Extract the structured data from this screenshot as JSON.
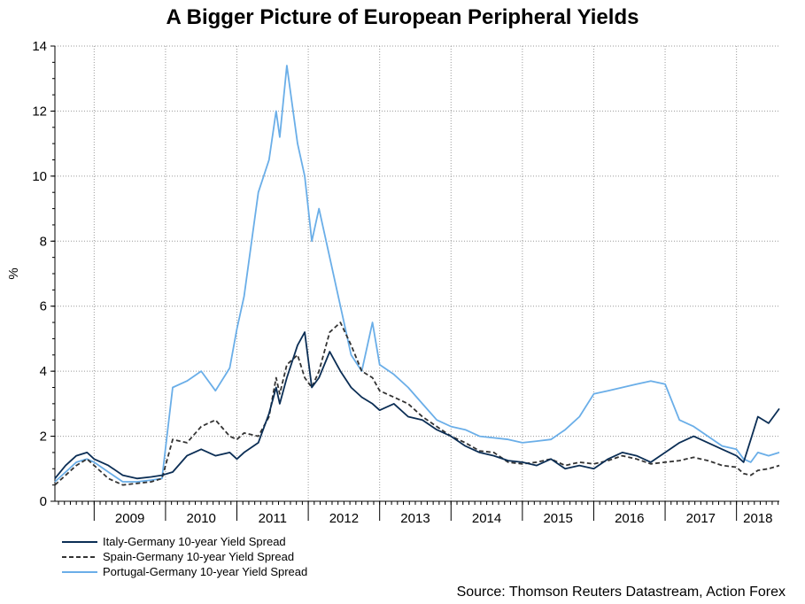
{
  "chart_data": {
    "type": "line",
    "title": "A Bigger Picture of European Peripheral Yields",
    "xlabel": "",
    "ylabel": "%",
    "ylim": [
      0,
      14
    ],
    "yticks": [
      "0",
      "2",
      "4",
      "6",
      "8",
      "10",
      "12",
      "14"
    ],
    "xlim": [
      2008.45,
      2018.6
    ],
    "x_tick_labels": [
      "2009",
      "2010",
      "2011",
      "2012",
      "2013",
      "2014",
      "2015",
      "2016",
      "2017",
      "2018"
    ],
    "grid": true,
    "legend_position": "bottom-left",
    "series": [
      {
        "name": "Italy-Germany 10-year Yield Spread",
        "color": "#0b2e55",
        "dash": "solid",
        "x": [
          2008.45,
          2008.6,
          2008.75,
          2008.9,
          2009.0,
          2009.2,
          2009.4,
          2009.6,
          2009.8,
          2009.95,
          2010.1,
          2010.3,
          2010.5,
          2010.7,
          2010.9,
          2011.0,
          2011.1,
          2011.3,
          2011.45,
          2011.55,
          2011.6,
          2011.7,
          2011.85,
          2011.95,
          2012.05,
          2012.15,
          2012.3,
          2012.45,
          2012.6,
          2012.75,
          2012.9,
          2013.0,
          2013.2,
          2013.4,
          2013.6,
          2013.8,
          2014.0,
          2014.2,
          2014.4,
          2014.6,
          2014.8,
          2015.0,
          2015.2,
          2015.4,
          2015.6,
          2015.8,
          2016.0,
          2016.2,
          2016.4,
          2016.6,
          2016.8,
          2017.0,
          2017.2,
          2017.4,
          2017.6,
          2017.8,
          2018.0,
          2018.1,
          2018.2,
          2018.3,
          2018.45,
          2018.6
        ],
        "values": [
          0.7,
          1.1,
          1.4,
          1.5,
          1.3,
          1.1,
          0.8,
          0.7,
          0.75,
          0.8,
          0.9,
          1.4,
          1.6,
          1.4,
          1.5,
          1.3,
          1.5,
          1.8,
          2.7,
          3.5,
          3.0,
          3.8,
          4.8,
          5.2,
          3.5,
          3.8,
          4.6,
          4.0,
          3.5,
          3.2,
          3.0,
          2.8,
          3.0,
          2.6,
          2.5,
          2.2,
          2.0,
          1.7,
          1.5,
          1.4,
          1.25,
          1.2,
          1.1,
          1.3,
          1.0,
          1.1,
          1.0,
          1.3,
          1.5,
          1.4,
          1.2,
          1.5,
          1.8,
          2.0,
          1.8,
          1.6,
          1.4,
          1.2,
          1.9,
          2.6,
          2.4,
          2.85
        ]
      },
      {
        "name": "Spain-Germany 10-year Yield Spread",
        "color": "#333333",
        "dash": "dashed",
        "x": [
          2008.45,
          2008.6,
          2008.75,
          2008.9,
          2009.0,
          2009.2,
          2009.4,
          2009.6,
          2009.8,
          2009.95,
          2010.1,
          2010.3,
          2010.5,
          2010.7,
          2010.9,
          2011.0,
          2011.1,
          2011.3,
          2011.45,
          2011.55,
          2011.6,
          2011.7,
          2011.85,
          2011.95,
          2012.05,
          2012.15,
          2012.3,
          2012.45,
          2012.6,
          2012.75,
          2012.9,
          2013.0,
          2013.2,
          2013.4,
          2013.6,
          2013.8,
          2014.0,
          2014.2,
          2014.4,
          2014.6,
          2014.8,
          2015.0,
          2015.2,
          2015.4,
          2015.6,
          2015.8,
          2016.0,
          2016.2,
          2016.4,
          2016.6,
          2016.8,
          2017.0,
          2017.2,
          2017.4,
          2017.6,
          2017.8,
          2018.0,
          2018.1,
          2018.2,
          2018.3,
          2018.45,
          2018.6
        ],
        "values": [
          0.5,
          0.8,
          1.1,
          1.3,
          1.1,
          0.7,
          0.5,
          0.55,
          0.6,
          0.7,
          1.9,
          1.8,
          2.3,
          2.5,
          2.0,
          1.9,
          2.1,
          2.0,
          2.6,
          3.8,
          3.3,
          4.2,
          4.5,
          3.8,
          3.5,
          4.0,
          5.2,
          5.5,
          4.8,
          4.0,
          3.8,
          3.4,
          3.2,
          3.0,
          2.6,
          2.3,
          2.0,
          1.8,
          1.55,
          1.5,
          1.2,
          1.15,
          1.2,
          1.3,
          1.1,
          1.2,
          1.15,
          1.25,
          1.4,
          1.3,
          1.15,
          1.2,
          1.25,
          1.35,
          1.25,
          1.1,
          1.05,
          0.85,
          0.8,
          0.95,
          1.0,
          1.1
        ]
      },
      {
        "name": "Portugal-Germany 10-year Yield Spread",
        "color": "#6aaee8",
        "dash": "solid",
        "x": [
          2008.45,
          2008.6,
          2008.75,
          2008.9,
          2009.0,
          2009.2,
          2009.4,
          2009.6,
          2009.8,
          2009.95,
          2010.1,
          2010.3,
          2010.5,
          2010.7,
          2010.9,
          2011.0,
          2011.1,
          2011.3,
          2011.45,
          2011.55,
          2011.6,
          2011.7,
          2011.85,
          2011.95,
          2012.05,
          2012.15,
          2012.3,
          2012.45,
          2012.6,
          2012.75,
          2012.9,
          2013.0,
          2013.2,
          2013.4,
          2013.6,
          2013.8,
          2014.0,
          2014.2,
          2014.4,
          2014.6,
          2014.8,
          2015.0,
          2015.2,
          2015.4,
          2015.6,
          2015.8,
          2016.0,
          2016.2,
          2016.4,
          2016.6,
          2016.8,
          2017.0,
          2017.2,
          2017.4,
          2017.6,
          2017.8,
          2018.0,
          2018.1,
          2018.2,
          2018.3,
          2018.45,
          2018.6
        ],
        "values": [
          0.6,
          0.9,
          1.2,
          1.3,
          1.2,
          0.9,
          0.6,
          0.6,
          0.65,
          0.7,
          3.5,
          3.7,
          4.0,
          3.4,
          4.1,
          5.3,
          6.3,
          9.5,
          10.5,
          12.0,
          11.2,
          13.4,
          11.0,
          10.0,
          8.0,
          9.0,
          7.5,
          6.0,
          4.5,
          4.0,
          5.5,
          4.2,
          3.9,
          3.5,
          3.0,
          2.5,
          2.3,
          2.2,
          2.0,
          1.95,
          1.9,
          1.8,
          1.85,
          1.9,
          2.2,
          2.6,
          3.3,
          3.4,
          3.5,
          3.6,
          3.7,
          3.6,
          2.5,
          2.3,
          2.0,
          1.7,
          1.6,
          1.3,
          1.2,
          1.5,
          1.4,
          1.5
        ]
      }
    ]
  },
  "source": "Source: Thomson Reuters Datastream, Action Forex"
}
